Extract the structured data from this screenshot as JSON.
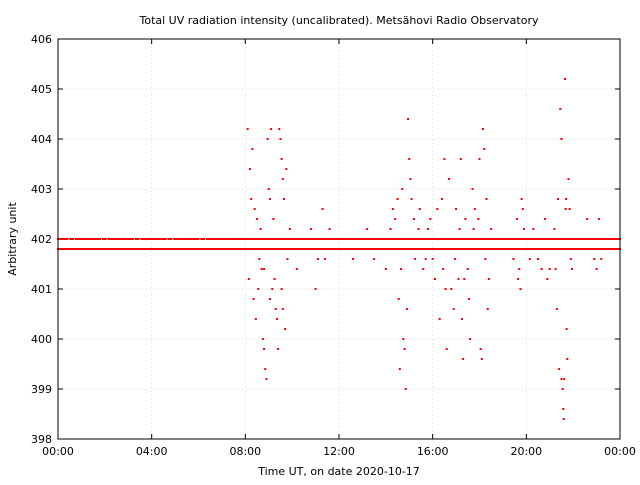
{
  "chart_data": {
    "type": "scatter",
    "title": "Total UV radiation intensity (uncalibrated). Metsähovi Radio Observatory",
    "xlabel": "Time UT, on date 2020-10-17",
    "ylabel": "Arbitrary unit",
    "xlim": [
      0,
      24
    ],
    "ylim": [
      398,
      406
    ],
    "x_ticks": [
      {
        "value": 0,
        "label": "00:00"
      },
      {
        "value": 4,
        "label": "04:00"
      },
      {
        "value": 8,
        "label": "08:00"
      },
      {
        "value": 12,
        "label": "12:00"
      },
      {
        "value": 16,
        "label": "16:00"
      },
      {
        "value": 20,
        "label": "20:00"
      },
      {
        "value": 24,
        "label": "00:00"
      }
    ],
    "y_ticks": [
      {
        "value": 398,
        "label": "398"
      },
      {
        "value": 399,
        "label": "399"
      },
      {
        "value": 400,
        "label": "400"
      },
      {
        "value": 401,
        "label": "401"
      },
      {
        "value": 402,
        "label": "402"
      },
      {
        "value": 403,
        "label": "403"
      },
      {
        "value": 404,
        "label": "404"
      },
      {
        "value": 405,
        "label": "405"
      },
      {
        "value": 406,
        "label": "406"
      }
    ],
    "grid": true,
    "marker_color": "#ff0000",
    "series": [
      {
        "name": "",
        "baseline_levels": [
          401.8,
          402.0
        ],
        "baseline_range": [
          0,
          24
        ],
        "points": [
          [
            8.1,
            404.2
          ],
          [
            8.2,
            403.4
          ],
          [
            8.25,
            402.8
          ],
          [
            8.3,
            403.8
          ],
          [
            8.4,
            402.6
          ],
          [
            8.5,
            402.4
          ],
          [
            8.6,
            401.6
          ],
          [
            8.7,
            401.4
          ],
          [
            8.75,
            400.0
          ],
          [
            8.8,
            399.8
          ],
          [
            8.85,
            399.4
          ],
          [
            8.9,
            399.2
          ],
          [
            8.95,
            404.0
          ],
          [
            9.0,
            403.0
          ],
          [
            9.05,
            402.8
          ],
          [
            9.1,
            404.2
          ],
          [
            9.15,
            401.0
          ],
          [
            9.2,
            402.4
          ],
          [
            9.3,
            400.6
          ],
          [
            9.4,
            399.8
          ],
          [
            9.45,
            404.2
          ],
          [
            9.5,
            404.0
          ],
          [
            9.55,
            403.6
          ],
          [
            9.6,
            403.2
          ],
          [
            9.65,
            402.8
          ],
          [
            9.7,
            400.2
          ],
          [
            9.75,
            403.4
          ],
          [
            9.8,
            401.6
          ],
          [
            9.9,
            402.2
          ],
          [
            10.0,
            402.0
          ],
          [
            8.15,
            401.2
          ],
          [
            8.35,
            400.8
          ],
          [
            8.45,
            400.4
          ],
          [
            8.55,
            401.0
          ],
          [
            8.65,
            402.2
          ],
          [
            8.8,
            401.4
          ],
          [
            9.05,
            400.8
          ],
          [
            9.25,
            401.2
          ],
          [
            9.35,
            400.4
          ],
          [
            9.55,
            401.0
          ],
          [
            9.6,
            400.6
          ],
          [
            9.85,
            401.8
          ],
          [
            10.2,
            401.4
          ],
          [
            10.5,
            401.8
          ],
          [
            10.8,
            402.2
          ],
          [
            11.0,
            401.0
          ],
          [
            11.1,
            401.6
          ],
          [
            11.3,
            402.6
          ],
          [
            11.4,
            401.6
          ],
          [
            11.6,
            402.2
          ],
          [
            12.6,
            401.6
          ],
          [
            12.9,
            401.8
          ],
          [
            13.2,
            402.2
          ],
          [
            13.5,
            401.6
          ],
          [
            13.8,
            401.8
          ],
          [
            14.0,
            401.4
          ],
          [
            14.2,
            402.2
          ],
          [
            14.3,
            402.6
          ],
          [
            14.4,
            402.4
          ],
          [
            14.5,
            402.8
          ],
          [
            14.55,
            400.8
          ],
          [
            14.6,
            399.4
          ],
          [
            14.65,
            401.4
          ],
          [
            14.7,
            403.0
          ],
          [
            14.75,
            400.0
          ],
          [
            14.8,
            399.8
          ],
          [
            14.85,
            399.0
          ],
          [
            14.9,
            400.6
          ],
          [
            14.95,
            404.4
          ],
          [
            15.0,
            403.6
          ],
          [
            15.05,
            403.2
          ],
          [
            15.1,
            402.8
          ],
          [
            15.2,
            402.4
          ],
          [
            15.3,
            401.8
          ],
          [
            15.4,
            402.2
          ],
          [
            15.6,
            401.4
          ],
          [
            15.8,
            402.2
          ],
          [
            16.0,
            401.6
          ],
          [
            16.2,
            402.6
          ],
          [
            16.3,
            400.4
          ],
          [
            16.4,
            402.8
          ],
          [
            16.5,
            403.6
          ],
          [
            16.6,
            399.8
          ],
          [
            16.7,
            403.2
          ],
          [
            16.8,
            401.0
          ],
          [
            16.9,
            400.6
          ],
          [
            17.0,
            402.6
          ],
          [
            17.1,
            401.2
          ],
          [
            17.2,
            403.6
          ],
          [
            17.25,
            400.4
          ],
          [
            17.3,
            399.6
          ],
          [
            17.4,
            402.4
          ],
          [
            17.5,
            401.4
          ],
          [
            17.6,
            400.0
          ],
          [
            17.7,
            403.0
          ],
          [
            17.8,
            402.6
          ],
          [
            17.9,
            401.8
          ],
          [
            18.0,
            403.6
          ],
          [
            18.05,
            399.8
          ],
          [
            18.1,
            399.6
          ],
          [
            18.15,
            404.2
          ],
          [
            18.2,
            403.8
          ],
          [
            18.3,
            402.8
          ],
          [
            18.4,
            401.2
          ],
          [
            18.5,
            402.2
          ],
          [
            15.25,
            401.6
          ],
          [
            15.45,
            402.6
          ],
          [
            15.7,
            401.6
          ],
          [
            15.9,
            402.4
          ],
          [
            16.1,
            401.2
          ],
          [
            16.15,
            402.0
          ],
          [
            16.45,
            401.4
          ],
          [
            16.55,
            401.0
          ],
          [
            16.75,
            401.8
          ],
          [
            16.95,
            401.6
          ],
          [
            17.15,
            402.2
          ],
          [
            17.35,
            401.2
          ],
          [
            17.55,
            400.8
          ],
          [
            17.65,
            401.8
          ],
          [
            17.75,
            402.2
          ],
          [
            17.95,
            402.4
          ],
          [
            18.25,
            401.6
          ],
          [
            18.35,
            400.6
          ],
          [
            19.4,
            401.8
          ],
          [
            19.6,
            402.4
          ],
          [
            19.7,
            401.4
          ],
          [
            19.75,
            401.0
          ],
          [
            19.8,
            402.8
          ],
          [
            19.85,
            402.6
          ],
          [
            19.9,
            402.2
          ],
          [
            20.0,
            401.8
          ],
          [
            20.3,
            402.2
          ],
          [
            20.5,
            401.6
          ],
          [
            20.8,
            402.4
          ],
          [
            21.0,
            401.4
          ],
          [
            21.2,
            402.2
          ],
          [
            21.3,
            400.6
          ],
          [
            21.35,
            402.8
          ],
          [
            21.4,
            399.4
          ],
          [
            21.45,
            404.6
          ],
          [
            21.5,
            404.0
          ],
          [
            21.55,
            399.0
          ],
          [
            21.6,
            398.4
          ],
          [
            21.65,
            405.2
          ],
          [
            21.7,
            402.8
          ],
          [
            21.75,
            399.6
          ],
          [
            21.8,
            403.2
          ],
          [
            21.9,
            401.6
          ],
          [
            22.2,
            401.8
          ],
          [
            22.6,
            402.4
          ],
          [
            22.9,
            401.6
          ],
          [
            23.1,
            402.4
          ],
          [
            23.3,
            401.8
          ],
          [
            19.45,
            401.6
          ],
          [
            19.65,
            401.2
          ],
          [
            20.15,
            401.6
          ],
          [
            20.65,
            401.4
          ],
          [
            20.9,
            401.2
          ],
          [
            21.1,
            401.8
          ],
          [
            21.25,
            401.4
          ],
          [
            21.5,
            399.2
          ],
          [
            21.58,
            398.6
          ],
          [
            21.62,
            399.2
          ],
          [
            21.68,
            402.6
          ],
          [
            21.72,
            400.2
          ],
          [
            21.85,
            402.6
          ],
          [
            21.95,
            401.4
          ],
          [
            23.0,
            401.4
          ],
          [
            23.2,
            401.6
          ]
        ]
      }
    ]
  }
}
